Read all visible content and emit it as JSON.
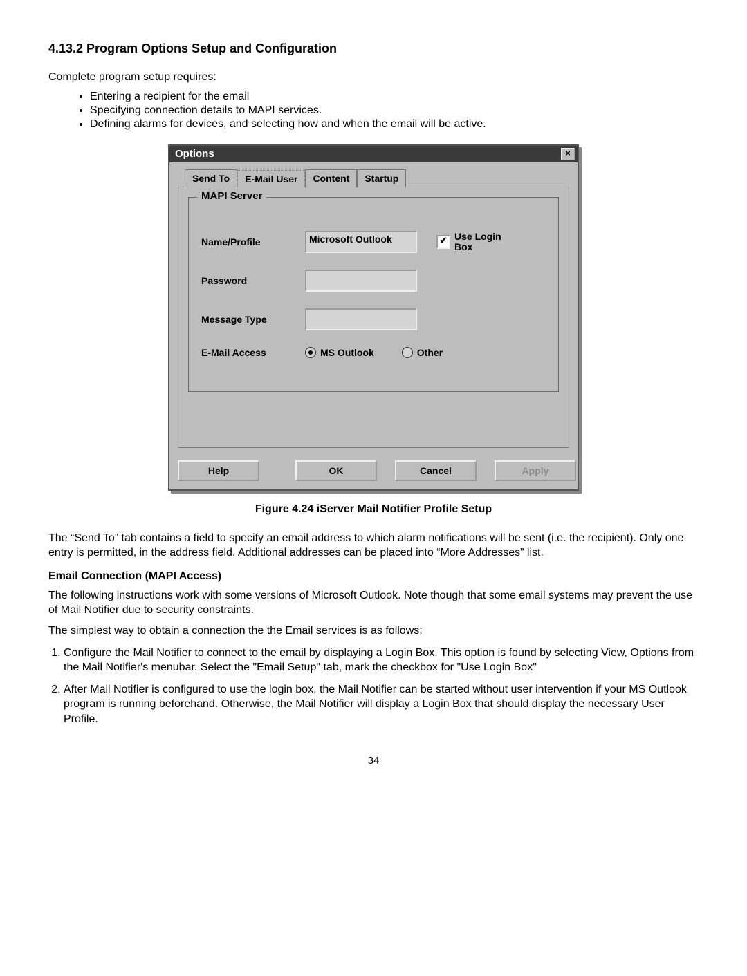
{
  "heading": "4.13.2  Program Options Setup and Configuration",
  "intro": "Complete program setup requires:",
  "bullets": [
    "Entering a recipient for the email",
    "Specifying connection details to MAPI services.",
    "Defining alarms for devices, and selecting how and when the email will be active."
  ],
  "dialog": {
    "title": "Options",
    "tabs": [
      "Send To",
      "E-Mail User",
      "Content",
      "Startup"
    ],
    "selected_tab": 1,
    "group_legend": "MAPI Server",
    "labels": {
      "name_profile": "Name/Profile",
      "password": "Password",
      "message_type": "Message Type",
      "email_access": "E-Mail Access"
    },
    "values": {
      "name_profile": "Microsoft Outlook",
      "password": "",
      "message_type": ""
    },
    "checkbox": {
      "label": "Use Login Box",
      "checked": true
    },
    "radios": {
      "options": [
        "MS Outlook",
        "Other"
      ],
      "selected": 0
    },
    "buttons": {
      "help": "Help",
      "ok": "OK",
      "cancel": "Cancel",
      "apply": "Apply"
    }
  },
  "figure_caption": "Figure 4.24  iServer Mail Notifier Profile Setup",
  "para_sendto": "The “Send To” tab contains a field to specify an email address to which alarm notifications will be sent (i.e. the recipient). Only one entry is permitted, in the address field. Additional addresses can be placed into “More Addresses” list.",
  "subheading_mapi": "Email Connection (MAPI Access)",
  "para_mapi1": "The following instructions work with some versions of Microsoft Outlook.   Note though that some email systems may prevent the use of Mail Notifier due to security constraints.",
  "para_mapi2": "The simplest way to obtain a connection the the Email services is as follows:",
  "steps": [
    "Configure the Mail Notifier to connect to the email by displaying a Login Box.   This option is found by selecting View, Options from the Mail Notifier's menubar.   Select the \"Email Setup\" tab, mark the checkbox for \"Use Login Box\"",
    "After Mail Notifier is configured to use the login box, the Mail Notifier can be started without user intervention if your MS Outlook program is running beforehand.   Otherwise, the Mail Notifier will display a Login Box that should display the necessary User Profile."
  ],
  "page_number": "34"
}
